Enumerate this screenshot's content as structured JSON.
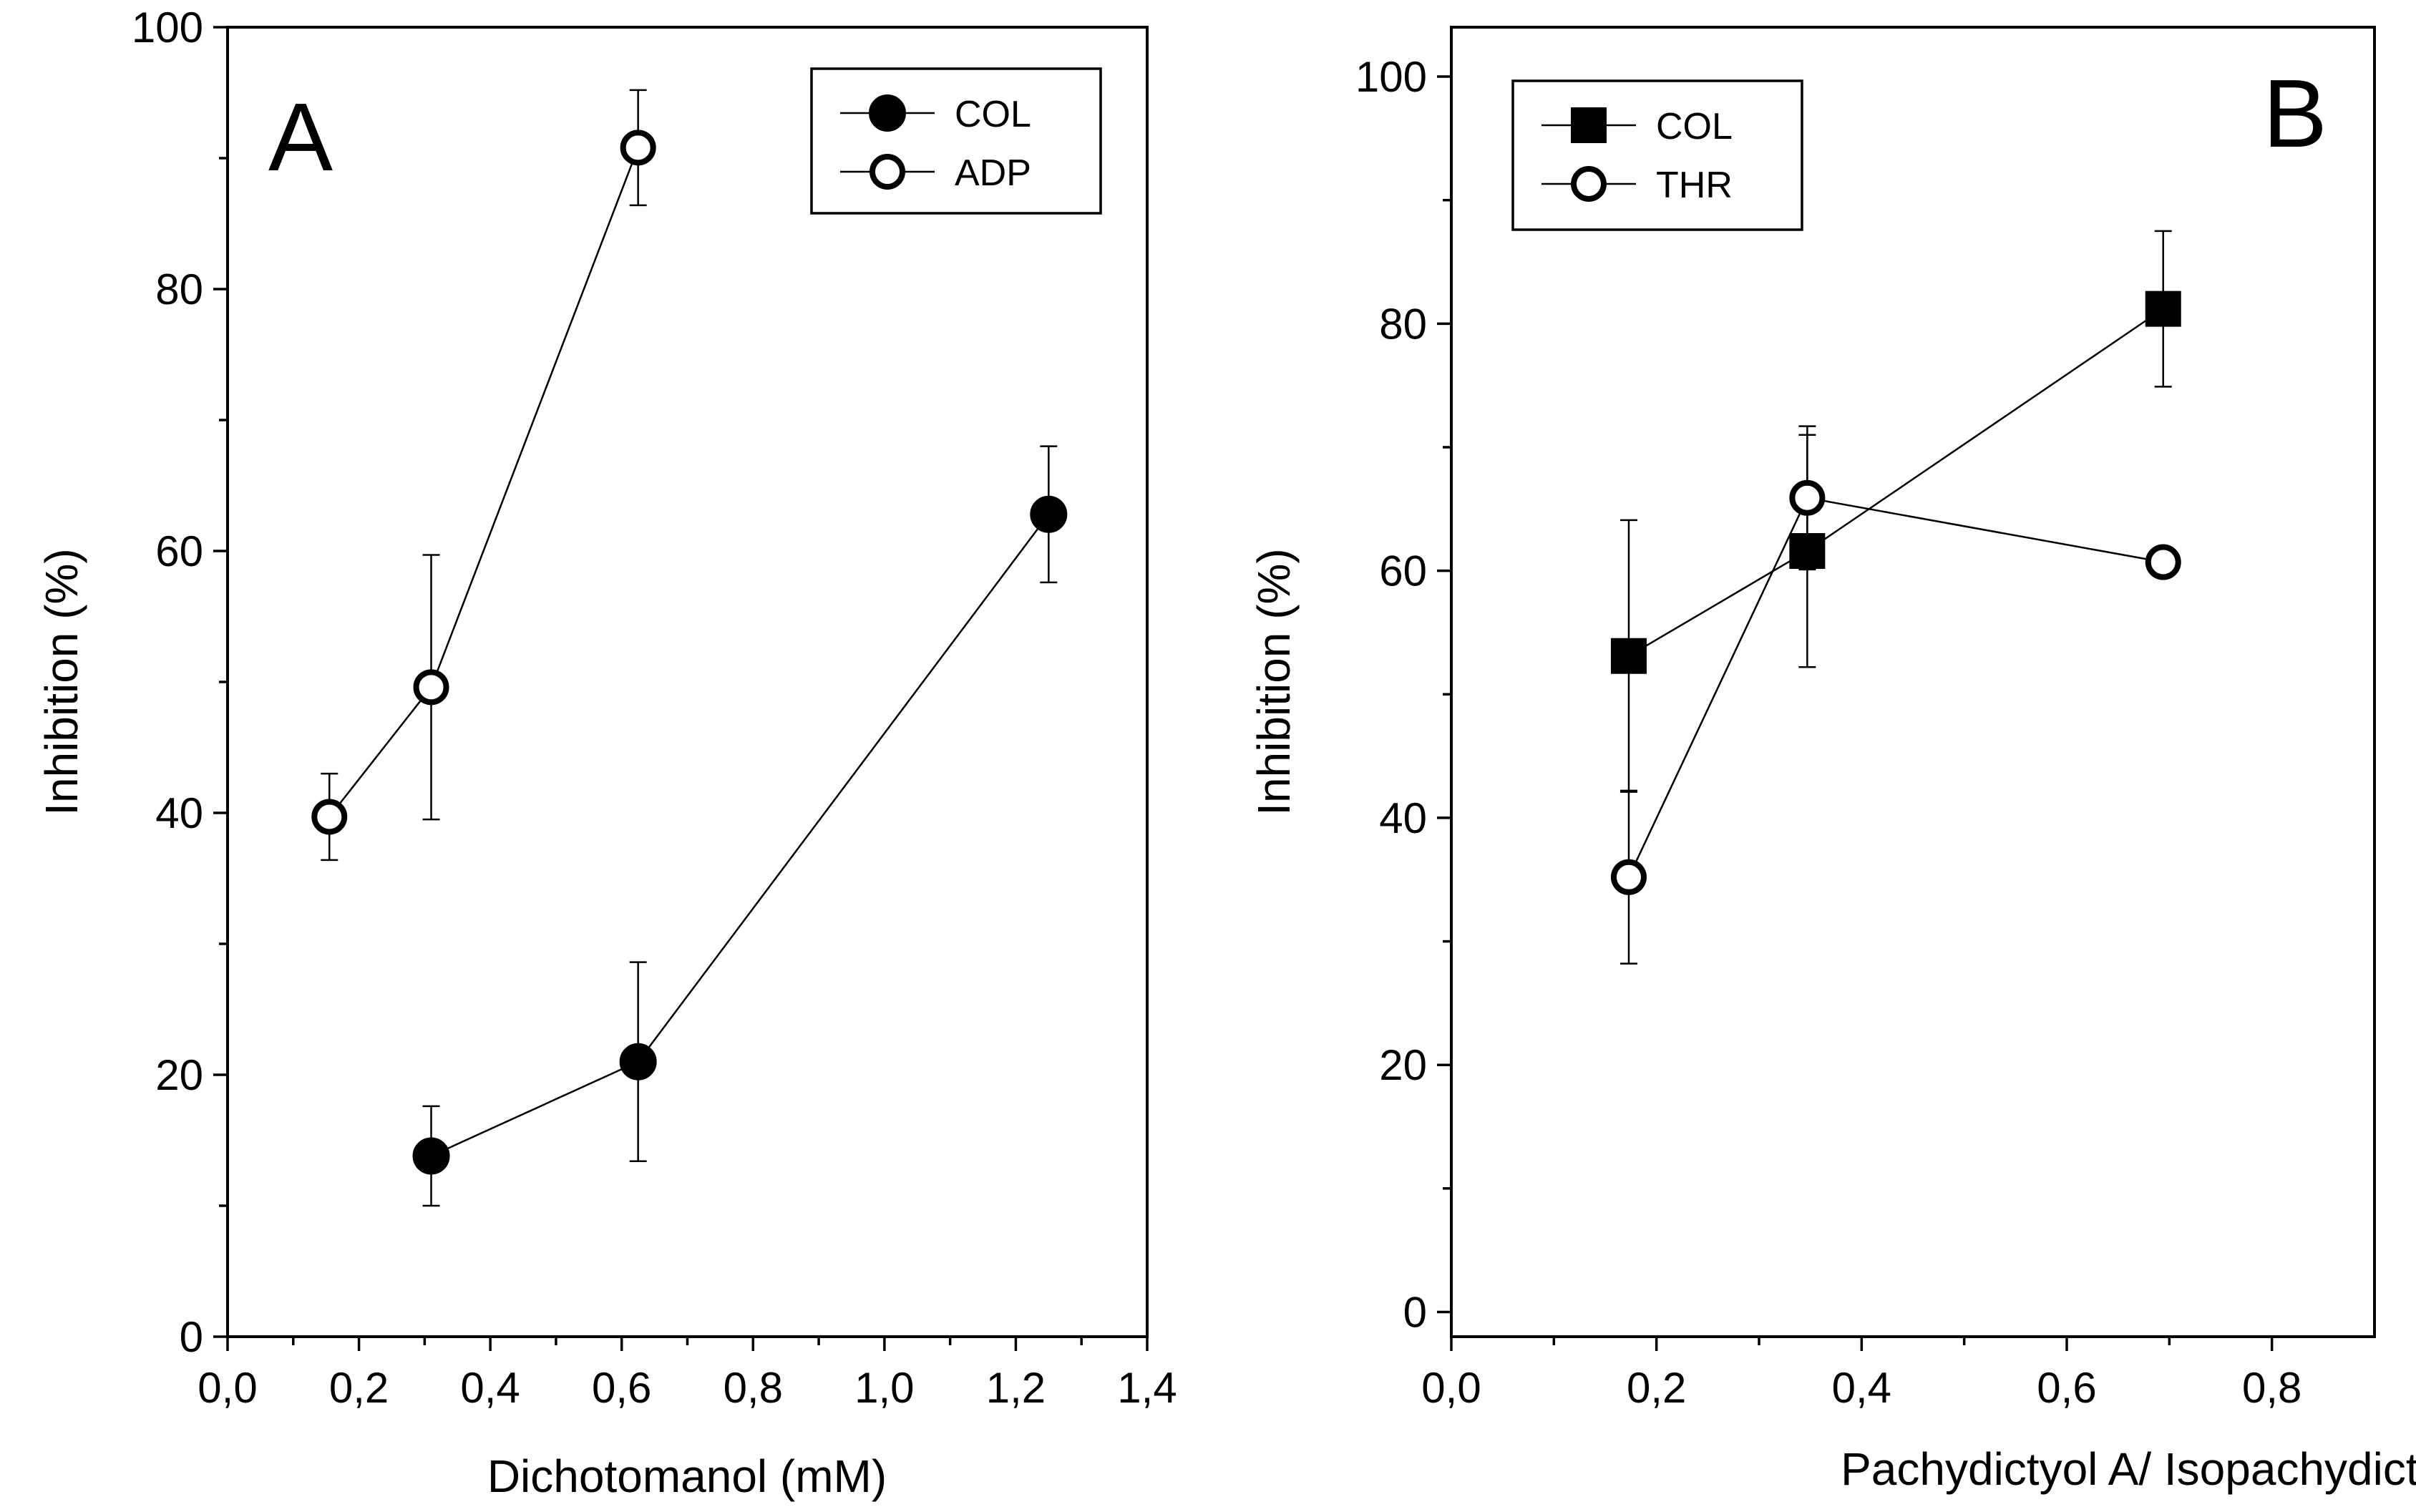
{
  "chart_data": [
    {
      "type": "scatter",
      "panel_label": "A",
      "title": "",
      "xlabel": "Dichotomanol (mM)",
      "ylabel": "Inhibition (%)",
      "xlim": [
        0.0,
        1.4
      ],
      "ylim": [
        0,
        100
      ],
      "x_major_ticks": [
        0.0,
        0.2,
        0.4,
        0.6,
        0.8,
        1.0,
        1.2,
        1.4
      ],
      "x_tick_labels": [
        "0,0",
        "0,2",
        "0,4",
        "0,6",
        "0,8",
        "1,0",
        "1,2",
        "1,4"
      ],
      "x_minor_ticks": [
        0.1,
        0.3,
        0.5,
        0.7,
        0.9,
        1.1,
        1.3
      ],
      "y_major_ticks": [
        0,
        20,
        40,
        60,
        80,
        100
      ],
      "y_tick_labels": [
        "0",
        "20",
        "40",
        "60",
        "80",
        "100"
      ],
      "y_minor_ticks": [
        10,
        30,
        50,
        70,
        90
      ],
      "legend_position": "top-right",
      "series": [
        {
          "name": "COL",
          "marker": "filled-circle",
          "x": [
            0.31,
            0.625,
            1.25
          ],
          "y": [
            13.8,
            21.0,
            62.8
          ],
          "err": [
            3.8,
            7.6,
            5.2
          ]
        },
        {
          "name": "ADP",
          "marker": "open-circle",
          "x": [
            0.155,
            0.31,
            0.625
          ],
          "y": [
            39.7,
            49.6,
            90.8
          ],
          "err": [
            3.3,
            10.1,
            4.4
          ]
        }
      ]
    },
    {
      "type": "scatter",
      "panel_label": "B",
      "title": "",
      "xlabel": "Pachydictyol A/ Isopachydictyol A (mM)",
      "ylabel": "Inhibition (%)",
      "xlim": [
        0.0,
        0.9
      ],
      "ylim": [
        -2,
        104
      ],
      "x_major_ticks": [
        0.0,
        0.2,
        0.4,
        0.6,
        0.8
      ],
      "x_tick_labels": [
        "0,0",
        "0,2",
        "0,4",
        "0,6",
        "0,8"
      ],
      "x_minor_ticks": [
        0.1,
        0.3,
        0.5,
        0.7
      ],
      "y_major_ticks": [
        0,
        20,
        40,
        60,
        80,
        100
      ],
      "y_tick_labels": [
        "0",
        "20",
        "40",
        "60",
        "80",
        "100"
      ],
      "y_minor_ticks": [
        10,
        30,
        50,
        70,
        90
      ],
      "legend_position": "top-left",
      "series": [
        {
          "name": "COL",
          "marker": "filled-square",
          "x": [
            0.173,
            0.347,
            0.694
          ],
          "y": [
            53.1,
            61.6,
            81.2
          ],
          "err": [
            11.0,
            9.4,
            6.3
          ]
        },
        {
          "name": "THR",
          "marker": "open-circle",
          "x": [
            0.173,
            0.347,
            0.694
          ],
          "y": [
            35.2,
            65.9,
            60.7
          ],
          "err": [
            7.0,
            5.8,
            0
          ]
        }
      ]
    }
  ]
}
